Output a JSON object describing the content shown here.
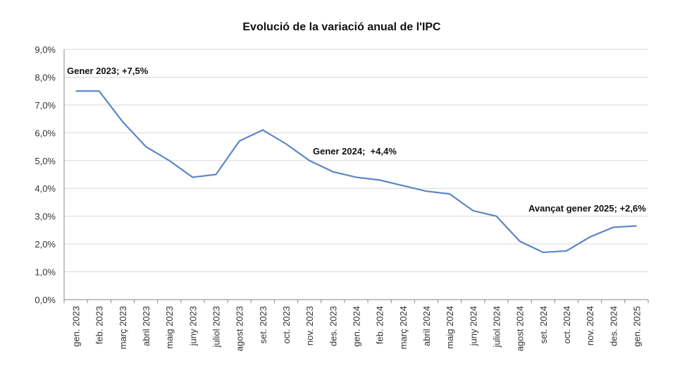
{
  "chart_data": {
    "type": "line",
    "title": "Evolució de la variació anual de l'IPC",
    "xlabel": "",
    "ylabel": "",
    "ylim": [
      0,
      9
    ],
    "yticks": [
      "0,0%",
      "1,0%",
      "2,0%",
      "3,0%",
      "4,0%",
      "5,0%",
      "6,0%",
      "7,0%",
      "8,0%",
      "9,0%"
    ],
    "grid": true,
    "line_color": "#5B87C5",
    "categories": [
      "gen. 2023",
      "feb. 2023",
      "març 2023",
      "abril 2023",
      "maig 2023",
      "juny 2023",
      "juliol 2023",
      "agost 2023",
      "set. 2023",
      "oct. 2023",
      "nov. 2023",
      "des. 2023",
      "gen. 2024",
      "feb. 2024",
      "març 2024",
      "abril 2024",
      "maig 2024",
      "juny 2024",
      "juliol 2024",
      "agost 2024",
      "set. 2024",
      "oct. 2024",
      "nov. 2024",
      "des. 2024",
      "gen. 2025"
    ],
    "values": [
      7.5,
      7.5,
      6.4,
      5.5,
      5.0,
      4.4,
      4.5,
      5.7,
      6.1,
      5.6,
      5.0,
      4.6,
      4.4,
      4.3,
      4.1,
      3.9,
      3.8,
      3.2,
      3.0,
      2.1,
      1.7,
      1.75,
      2.25,
      2.6,
      2.65
    ],
    "annotations": [
      {
        "text": "Gener 2023; +7,5%",
        "category": "gen. 2023"
      },
      {
        "text": "Gener 2024;  +4,4%",
        "category": "gen. 2024"
      },
      {
        "text": "Avançat gener 2025; +2,6%",
        "category": "gen. 2025"
      }
    ]
  }
}
